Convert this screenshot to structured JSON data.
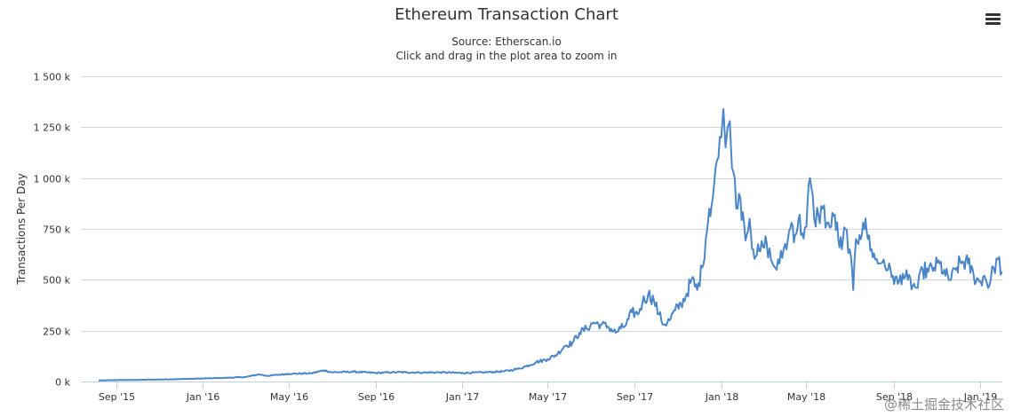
{
  "chart_data": {
    "type": "line",
    "title": "Ethereum Transaction Chart",
    "subtitle_source": "Source: Etherscan.io",
    "subtitle_hint": "Click and drag in the plot area to zoom in",
    "xlabel": "",
    "ylabel": "Transactions Per Day",
    "x_ticks": [
      "Sep '15",
      "Jan '16",
      "May '16",
      "Sep '16",
      "Jan '17",
      "May '17",
      "Sep '17",
      "Jan '18",
      "May '18",
      "Sep '18",
      "Jan '19"
    ],
    "y_ticks": [
      "0 k",
      "250 k",
      "500 k",
      "750 k",
      "1 000 k",
      "1 250 k",
      "1 500 k"
    ],
    "ylim": [
      0,
      1500000
    ],
    "grid": "horizontal",
    "line_color": "#4a86c8",
    "x": [
      "2015-08-07",
      "2015-09-01",
      "2015-10-01",
      "2015-11-01",
      "2015-12-01",
      "2016-01-01",
      "2016-02-01",
      "2016-03-01",
      "2016-03-20",
      "2016-04-01",
      "2016-05-01",
      "2016-06-01",
      "2016-06-20",
      "2016-07-01",
      "2016-08-01",
      "2016-09-01",
      "2016-10-01",
      "2016-11-01",
      "2016-12-01",
      "2017-01-01",
      "2017-02-01",
      "2017-03-01",
      "2017-03-20",
      "2017-04-01",
      "2017-04-15",
      "2017-05-01",
      "2017-05-15",
      "2017-05-25",
      "2017-06-05",
      "2017-06-15",
      "2017-06-25",
      "2017-07-05",
      "2017-07-15",
      "2017-07-25",
      "2017-08-05",
      "2017-08-12",
      "2017-08-20",
      "2017-08-28",
      "2017-09-05",
      "2017-09-12",
      "2017-09-20",
      "2017-09-28",
      "2017-10-05",
      "2017-10-12",
      "2017-10-20",
      "2017-10-28",
      "2017-11-05",
      "2017-11-12",
      "2017-11-20",
      "2017-11-28",
      "2017-12-05",
      "2017-12-10",
      "2017-12-15",
      "2017-12-20",
      "2017-12-24",
      "2017-12-28",
      "2018-01-01",
      "2018-01-04",
      "2018-01-07",
      "2018-01-10",
      "2018-01-13",
      "2018-01-16",
      "2018-01-20",
      "2018-01-24",
      "2018-01-28",
      "2018-02-02",
      "2018-02-06",
      "2018-02-10",
      "2018-02-15",
      "2018-02-20",
      "2018-02-25",
      "2018-03-01",
      "2018-03-06",
      "2018-03-12",
      "2018-03-18",
      "2018-03-24",
      "2018-03-30",
      "2018-04-05",
      "2018-04-10",
      "2018-04-15",
      "2018-04-20",
      "2018-04-25",
      "2018-05-01",
      "2018-05-06",
      "2018-05-12",
      "2018-05-18",
      "2018-05-24",
      "2018-05-30",
      "2018-06-05",
      "2018-06-10",
      "2018-06-15",
      "2018-06-20",
      "2018-06-25",
      "2018-07-01",
      "2018-07-06",
      "2018-07-10",
      "2018-07-15",
      "2018-07-20",
      "2018-07-25",
      "2018-08-01",
      "2018-08-06",
      "2018-08-12",
      "2018-08-18",
      "2018-08-24",
      "2018-08-31",
      "2018-09-07",
      "2018-09-14",
      "2018-09-21",
      "2018-09-28",
      "2018-10-05",
      "2018-10-12",
      "2018-10-20",
      "2018-10-28",
      "2018-11-05",
      "2018-11-13",
      "2018-11-21",
      "2018-11-29",
      "2018-12-07",
      "2018-12-15",
      "2018-12-23",
      "2018-12-31",
      "2019-01-07",
      "2019-01-14",
      "2019-01-20",
      "2019-01-26",
      "2019-02-01"
    ],
    "series": [
      {
        "values": [
          5000,
          7000,
          8000,
          10000,
          12000,
          15000,
          18000,
          22000,
          35000,
          28000,
          38000,
          40000,
          55000,
          45000,
          48000,
          42000,
          46000,
          44000,
          45000,
          42000,
          45000,
          50000,
          62000,
          75000,
          95000,
          110000,
          135000,
          175000,
          190000,
          240000,
          260000,
          290000,
          280000,
          270000,
          240000,
          260000,
          280000,
          340000,
          330000,
          390000,
          430000,
          400000,
          330000,
          280000,
          300000,
          350000,
          380000,
          420000,
          500000,
          450000,
          560000,
          700000,
          850000,
          900000,
          1050000,
          1100000,
          1200000,
          1340000,
          1150000,
          1250000,
          1280000,
          1050000,
          1000000,
          850000,
          900000,
          780000,
          720000,
          800000,
          650000,
          620000,
          640000,
          660000,
          680000,
          600000,
          560000,
          580000,
          650000,
          700000,
          780000,
          720000,
          800000,
          730000,
          760000,
          1000000,
          800000,
          820000,
          850000,
          780000,
          760000,
          820000,
          700000,
          650000,
          750000,
          650000,
          450000,
          700000,
          720000,
          780000,
          740000,
          650000,
          600000,
          580000,
          600000,
          550000,
          520000,
          480000,
          530000,
          500000,
          470000,
          460000,
          550000,
          540000,
          560000,
          580000,
          520000,
          500000,
          560000,
          590000,
          580000,
          520000,
          490000,
          520000,
          470000,
          560000,
          600000,
          540000
        ]
      }
    ]
  },
  "watermark": "@稀土掘金技术社区"
}
